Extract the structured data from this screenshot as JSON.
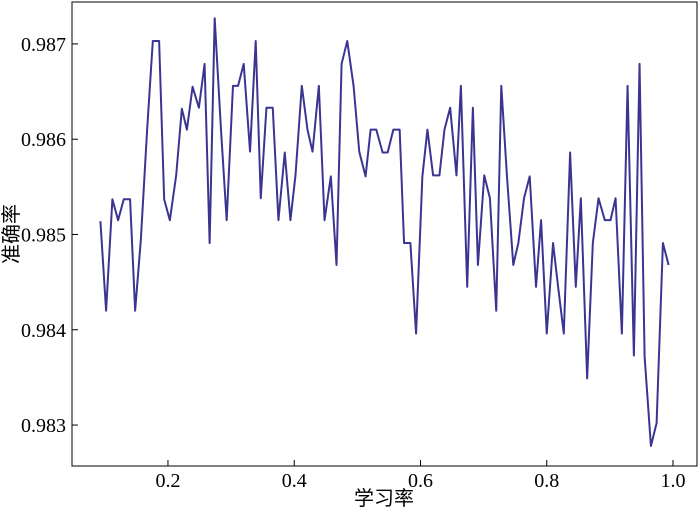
{
  "chart_data": {
    "type": "line",
    "xlabel": "学习率",
    "ylabel": "准确率",
    "x": [
      0.093,
      0.102,
      0.112,
      0.121,
      0.13,
      0.14,
      0.148,
      0.157,
      0.167,
      0.176,
      0.186,
      0.194,
      0.203,
      0.213,
      0.222,
      0.23,
      0.239,
      0.249,
      0.258,
      0.266,
      0.274,
      0.284,
      0.293,
      0.303,
      0.311,
      0.32,
      0.33,
      0.339,
      0.347,
      0.356,
      0.366,
      0.375,
      0.385,
      0.394,
      0.402,
      0.412,
      0.421,
      0.429,
      0.439,
      0.448,
      0.458,
      0.467,
      0.475,
      0.484,
      0.494,
      0.503,
      0.513,
      0.521,
      0.53,
      0.54,
      0.548,
      0.557,
      0.567,
      0.574,
      0.584,
      0.593,
      0.603,
      0.611,
      0.62,
      0.63,
      0.638,
      0.647,
      0.657,
      0.664,
      0.674,
      0.683,
      0.691,
      0.701,
      0.71,
      0.72,
      0.728,
      0.737,
      0.747,
      0.755,
      0.764,
      0.773,
      0.783,
      0.791,
      0.8,
      0.81,
      0.818,
      0.827,
      0.837,
      0.846,
      0.854,
      0.864,
      0.873,
      0.882,
      0.892,
      0.901,
      0.909,
      0.919,
      0.928,
      0.938,
      0.947,
      0.955,
      0.965,
      0.974,
      0.984,
      0.993
    ],
    "series": [
      {
        "name": "准确率",
        "color": "#3b3591",
        "values": [
          0.98514,
          0.9842,
          0.98537,
          0.98515,
          0.98537,
          0.98537,
          0.9842,
          0.98494,
          0.9861,
          0.98703,
          0.98703,
          0.98537,
          0.98515,
          0.98562,
          0.98632,
          0.9861,
          0.98655,
          0.98633,
          0.98679,
          0.98491,
          0.98727,
          0.9861,
          0.98515,
          0.98656,
          0.98656,
          0.98679,
          0.98587,
          0.98703,
          0.98538,
          0.98633,
          0.98633,
          0.98515,
          0.98586,
          0.98515,
          0.98562,
          0.98656,
          0.9861,
          0.98587,
          0.98656,
          0.98515,
          0.98561,
          0.98468,
          0.98679,
          0.98703,
          0.98656,
          0.98587,
          0.98561,
          0.9861,
          0.9861,
          0.98586,
          0.98586,
          0.9861,
          0.9861,
          0.98491,
          0.98491,
          0.98396,
          0.98561,
          0.9861,
          0.98562,
          0.98562,
          0.9861,
          0.98633,
          0.98562,
          0.98656,
          0.98445,
          0.98633,
          0.98468,
          0.98562,
          0.98538,
          0.9842,
          0.98656,
          0.98561,
          0.98468,
          0.98491,
          0.98538,
          0.98561,
          0.98445,
          0.98515,
          0.98396,
          0.98491,
          0.98445,
          0.98396,
          0.98586,
          0.98445,
          0.98538,
          0.98349,
          0.98491,
          0.98538,
          0.98515,
          0.98515,
          0.98538,
          0.98396,
          0.98656,
          0.98373,
          0.98679,
          0.98372,
          0.98278,
          0.98302,
          0.98491,
          0.98468
        ]
      }
    ],
    "xlim": [
      0.048,
      1.038
    ],
    "ylim": [
      0.98257,
      0.98744
    ],
    "xticks": [
      0.2,
      0.4,
      0.6,
      0.8,
      {
        "value": 1.0,
        "label": "1.0"
      }
    ],
    "yticks": [
      0.983,
      0.984,
      0.985,
      0.986,
      0.987
    ],
    "grid": false
  }
}
